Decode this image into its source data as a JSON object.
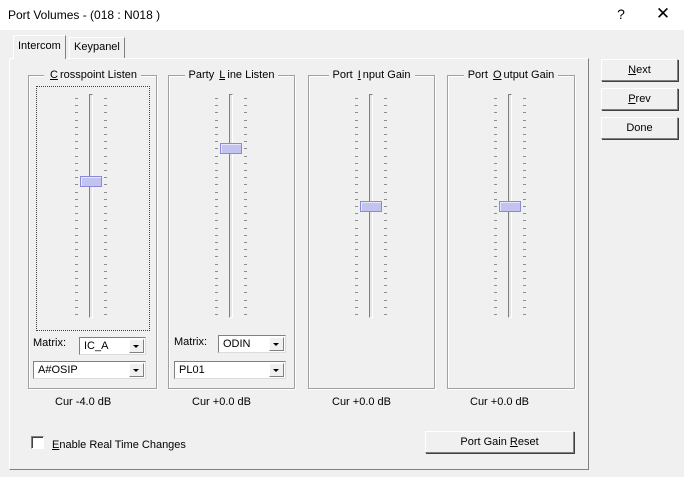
{
  "window": {
    "title": "Port Volumes - (018 : N018 )",
    "help_label": "?",
    "close_label": "✕"
  },
  "tabs": [
    {
      "label": "Intercom",
      "active": true
    },
    {
      "label": "Keypanel",
      "active": false
    }
  ],
  "groups": [
    {
      "title_pre": "",
      "title_key": "C",
      "title_post": "rosspoint Listen",
      "level": 0.61,
      "current": "Cur  -4.0 dB",
      "matrix_label": "Matrix:",
      "matrix_value": "IC_A",
      "port_value": "A#OSIP"
    },
    {
      "title_pre": "Party ",
      "title_key": "L",
      "title_post": "ine Listen",
      "level": 0.76,
      "current": "Cur  +0.0 dB",
      "matrix_label": "Matrix:",
      "matrix_value": "ODIN",
      "port_value": "PL01"
    },
    {
      "title_pre": "Port ",
      "title_key": "I",
      "title_post": "nput Gain",
      "level": 0.5,
      "current": "Cur  +0.0 dB"
    },
    {
      "title_pre": "Port ",
      "title_key": "O",
      "title_post": "utput Gain",
      "level": 0.5,
      "current": "Cur  +0.0 dB"
    }
  ],
  "buttons": {
    "next": {
      "key": "N",
      "rest": "ext"
    },
    "prev": {
      "key": "P",
      "rest": "rev"
    },
    "done": {
      "label": "Done"
    },
    "reset": {
      "pre": "Port Gain ",
      "key": "R",
      "post": "eset"
    }
  },
  "realtime": {
    "key": "E",
    "rest": "nable Real Time Changes",
    "checked": false
  }
}
